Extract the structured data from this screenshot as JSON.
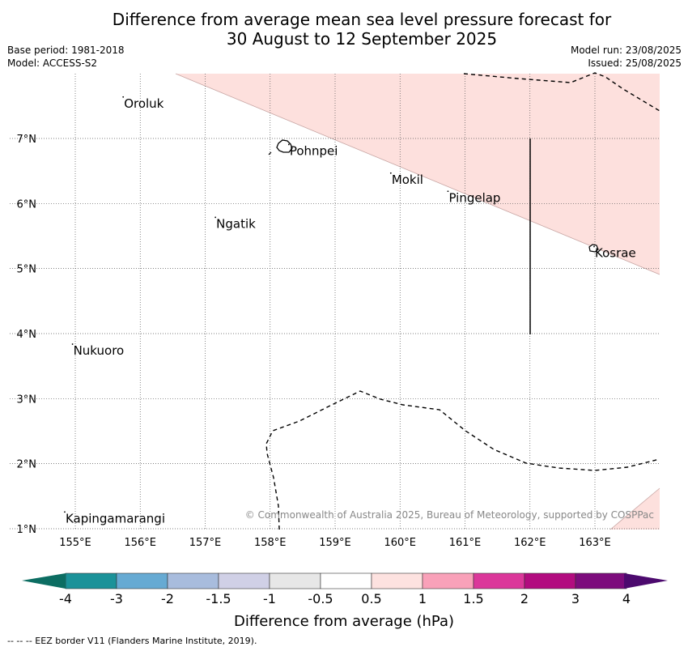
{
  "title": {
    "line1": "Difference from average mean sea level pressure forecast for",
    "line2": "30 August to 12 September 2025"
  },
  "info_left": [
    "Base period: 1981-2018",
    "Model: ACCESS-S2"
  ],
  "info_right": [
    "Model run: 23/08/2025",
    "Issued: 25/08/2025"
  ],
  "map": {
    "lon_range": [
      154.5,
      164.0
    ],
    "lat_range": [
      1.0,
      8.0
    ],
    "lon_ticks": [
      "155°E",
      "156°E",
      "157°E",
      "158°E",
      "159°E",
      "160°E",
      "161°E",
      "162°E",
      "163°E"
    ],
    "lat_ticks": [
      "7°N",
      "6°N",
      "5°N",
      "4°N",
      "3°N",
      "2°N",
      "1°N"
    ],
    "gridlines": "dotted",
    "places": [
      {
        "name": "Oroluk",
        "lon": 155.75,
        "lat": 7.6
      },
      {
        "name": "Pohnpei",
        "lon": 158.3,
        "lat": 6.87
      },
      {
        "name": "Mokil",
        "lon": 159.87,
        "lat": 6.43
      },
      {
        "name": "Pingelap",
        "lon": 160.75,
        "lat": 6.15
      },
      {
        "name": "Ngatik",
        "lon": 157.17,
        "lat": 5.75
      },
      {
        "name": "Kosrae",
        "lon": 163.0,
        "lat": 5.3
      },
      {
        "name": "Nukuoro",
        "lon": 154.97,
        "lat": 3.8
      },
      {
        "name": "Kapingamarangi",
        "lon": 154.85,
        "lat": 1.22
      }
    ],
    "anomaly_fill": "0.5 to 1 hPa",
    "copyright": "© Commonwealth of Australia 2025, Bureau of Meteorology, supported by COSPPac"
  },
  "colorbar": {
    "ticks": [
      "-4",
      "-3",
      "-2",
      "-1.5",
      "-1",
      "-0.5",
      "0.5",
      "1",
      "1.5",
      "2",
      "3",
      "4"
    ],
    "colors": [
      "#1b9299",
      "#66aad3",
      "#a8bcdd",
      "#d0d0e6",
      "#e7e7e7",
      "#ffffff",
      "#fde2e0",
      "#f9a1b9",
      "#db379a",
      "#b20c7f",
      "#7c0c7c"
    ],
    "under_color": "#0c6d62",
    "over_color": "#4c0a6e",
    "label": "Difference from average (hPa)"
  },
  "footer": "-- --  -- EEZ border V11 (Flanders Marine Institute, 2019)."
}
